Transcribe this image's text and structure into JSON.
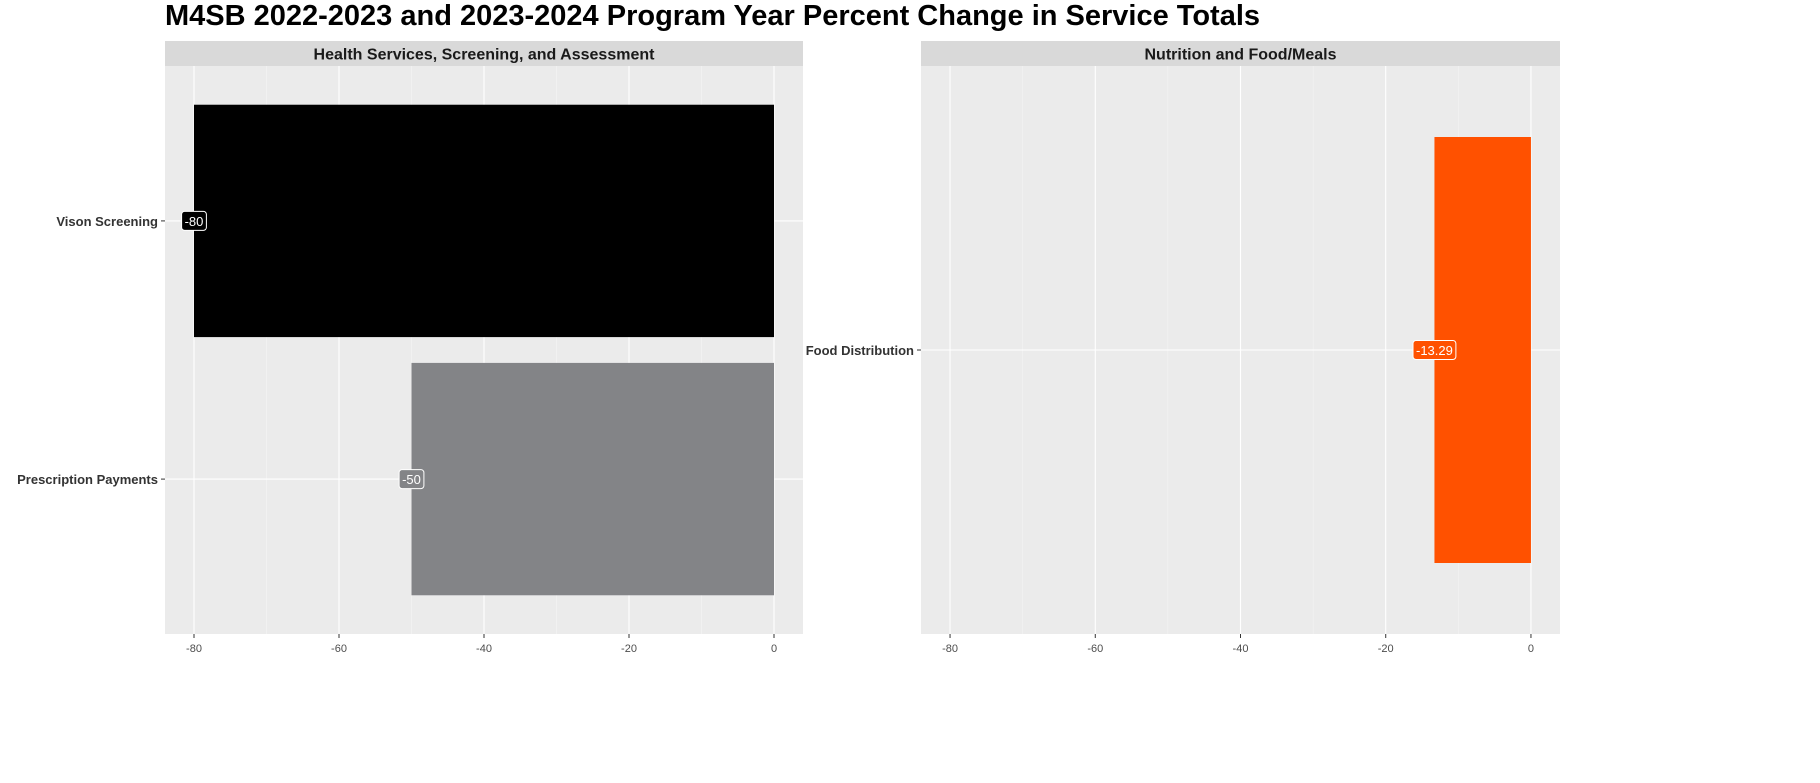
{
  "page_title": "M4SB 2022-2023 and 2023-2024 Program Year Percent Change in Service Totals",
  "chart_data": [
    {
      "type": "bar",
      "orientation": "horizontal",
      "title": "Health Services, Screening, and Assessment",
      "categories": [
        "Vison Screening",
        "Prescription Payments"
      ],
      "values": [
        -80,
        -50
      ],
      "labels": [
        "-80",
        "-50"
      ],
      "colors": [
        "#000000",
        "#838487"
      ],
      "xlim": [
        -84,
        4
      ],
      "xticks": [
        -80,
        -60,
        -40,
        -20,
        0
      ],
      "grid": true
    },
    {
      "type": "bar",
      "orientation": "horizontal",
      "title": "Nutrition and Food/Meals",
      "categories": [
        "Food Distribution"
      ],
      "values": [
        -13.29
      ],
      "labels": [
        "-13.29"
      ],
      "colors": [
        "#FF5100"
      ],
      "xlim": [
        -84,
        4
      ],
      "xticks": [
        -80,
        -60,
        -40,
        -20,
        0
      ],
      "grid": true
    }
  ]
}
